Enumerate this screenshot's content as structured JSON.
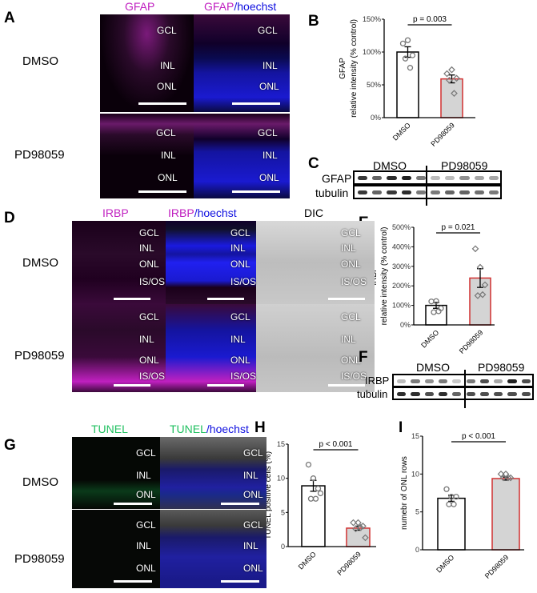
{
  "panels": {
    "A": "A",
    "B": "B",
    "C": "C",
    "D": "D",
    "E": "E",
    "F": "F",
    "G": "G",
    "H": "H",
    "I": "I"
  },
  "groups": {
    "dmso": "DMSO",
    "pd": "PD98059"
  },
  "panelA": {
    "h1": "GFAP",
    "h2a": "GFAP",
    "h2b": "/hoechst",
    "layers": [
      "GCL",
      "INL",
      "ONL"
    ]
  },
  "panelD": {
    "h1": "IRBP",
    "h2a": "IRBP",
    "h2b": "/hoechst",
    "h3": "DIC",
    "layers": [
      "GCL",
      "INL",
      "ONL",
      "IS/OS"
    ]
  },
  "panelG": {
    "h1": "TUNEL",
    "h2a": "TUNEL",
    "h2b": "/hoechst",
    "layers": [
      "GCL",
      "INL",
      "ONL"
    ]
  },
  "blotC": {
    "row1": "GFAP",
    "row2": "tubulin",
    "g1": "DMSO",
    "g2": "PD98059"
  },
  "blotF": {
    "row1": "IRBP",
    "row2": "tubulin",
    "g1": "DMSO",
    "g2": "PD98059"
  },
  "colors": {
    "magenta": "#c020c0",
    "blue": "#1010e0",
    "green": "#20c060",
    "red_bar": "#d03030",
    "gray_bar": "#d4d4d4"
  },
  "chart_data": [
    {
      "id": "B",
      "type": "bar",
      "ylabel": [
        "GFAP",
        "relative intensity (% control)"
      ],
      "categories": [
        "DMSO",
        "PD98059"
      ],
      "values": [
        100,
        59
      ],
      "sem": [
        8,
        6
      ],
      "ylim": [
        0,
        150
      ],
      "yticks": [
        "0%",
        "50%",
        "100%",
        "150%"
      ],
      "ytickvals": [
        0,
        50,
        100,
        150
      ],
      "points": [
        [
          113,
          118,
          95,
          90,
          76
        ],
        [
          67,
          73,
          60,
          57,
          37
        ]
      ],
      "annotation": "p = 0.003"
    },
    {
      "id": "E",
      "type": "bar",
      "ylabel": [
        "IRBP",
        "relative intensity (% control)"
      ],
      "categories": [
        "DMSO",
        "PD98059"
      ],
      "values": [
        100,
        240
      ],
      "sem": [
        15,
        48
      ],
      "ylim": [
        0,
        500
      ],
      "yticks": [
        "0%",
        "100%",
        "200%",
        "300%",
        "400%",
        "500%"
      ],
      "ytickvals": [
        0,
        100,
        200,
        300,
        400,
        500
      ],
      "points": [
        [
          120,
          122,
          85,
          65,
          70
        ],
        [
          390,
          295,
          205,
          150,
          155
        ]
      ],
      "annotation": "p = 0.021"
    },
    {
      "id": "H",
      "type": "bar",
      "ylabel": [
        "TUNEL positive cells (%)"
      ],
      "categories": [
        "DMSO",
        "PD98059"
      ],
      "values": [
        8.9,
        2.7
      ],
      "sem": [
        0.8,
        0.3
      ],
      "ylim": [
        0,
        15
      ],
      "yticks": [
        "0",
        "5",
        "10",
        "15"
      ],
      "ytickvals": [
        0,
        5,
        10,
        15
      ],
      "points": [
        [
          12,
          10,
          8.5,
          7,
          7,
          7.8
        ],
        [
          3.5,
          3.5,
          3,
          2.6,
          2.8,
          1.3
        ]
      ],
      "annotation": "p < 0.001"
    },
    {
      "id": "I",
      "type": "bar",
      "ylabel": [
        "numebr of ONL rows"
      ],
      "categories": [
        "DMSO",
        "PD98059"
      ],
      "values": [
        6.8,
        9.4
      ],
      "sem": [
        0.4,
        0.2
      ],
      "ylim": [
        0,
        15
      ],
      "yticks": [
        "0",
        "5",
        "10",
        "15"
      ],
      "ytickvals": [
        0,
        5,
        10,
        15
      ],
      "points": [
        [
          8,
          7,
          7,
          6,
          6
        ],
        [
          10,
          10,
          9.5,
          9.5,
          9.5
        ]
      ],
      "annotation": "p < 0.001"
    }
  ]
}
